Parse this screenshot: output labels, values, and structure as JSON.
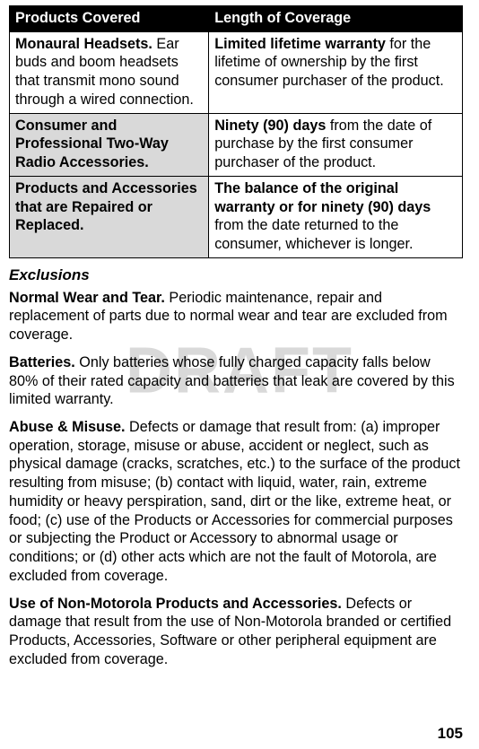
{
  "table": {
    "headers": [
      "Products Covered",
      "Length of Coverage"
    ],
    "rows": [
      {
        "shaded": false,
        "c1_bold": "Monaural Headsets.",
        "c1_rest": " Ear buds and boom headsets that transmit mono sound through a wired connection.",
        "c2_bold": "Limited lifetime warranty",
        "c2_rest": " for the lifetime of ownership by the first consumer purchaser of the product."
      },
      {
        "shaded": true,
        "c1_bold": "Consumer and Professional Two-Way Radio Accessories.",
        "c1_rest": "",
        "c2_bold": "Ninety (90) days",
        "c2_rest": " from the date of purchase by the first consumer purchaser of the product."
      },
      {
        "shaded": true,
        "c1_bold": "Products and Accessories that are Repaired or Replaced.",
        "c1_rest": "",
        "c2_bold": "The balance of the original warranty or for ninety (90) days",
        "c2_rest": " from the date returned to the consumer, whichever is longer."
      }
    ]
  },
  "section_heading": "Exclusions",
  "paragraphs": [
    {
      "lead": "Normal Wear and Tear.",
      "rest": " Periodic maintenance, repair and replacement of parts due to normal wear and tear are excluded from coverage."
    },
    {
      "lead": "Batteries.",
      "rest": " Only batteries whose fully charged capacity falls below 80% of their rated capacity and batteries that leak are covered by this limited warranty."
    },
    {
      "lead": "Abuse & Misuse.",
      "rest": " Defects or damage that result from: (a) improper operation, storage, misuse or abuse, accident or neglect, such as physical damage (cracks, scratches, etc.) to the surface of the product resulting from misuse; (b) contact with liquid, water, rain, extreme humidity or heavy perspiration, sand, dirt or the like, extreme heat, or food; (c) use of the Products or Accessories for commercial purposes or subjecting the Product or Accessory to abnormal usage or conditions; or (d) other acts which are not the fault of Motorola, are excluded from coverage."
    },
    {
      "lead": "Use of Non-Motorola Products and Accessories.",
      "rest": " Defects or damage that result from the use of Non-Motorola branded or certified Products, Accessories, Software or other peripheral equipment are excluded from coverage."
    }
  ],
  "watermark": "DRAFT",
  "page_number": "105"
}
